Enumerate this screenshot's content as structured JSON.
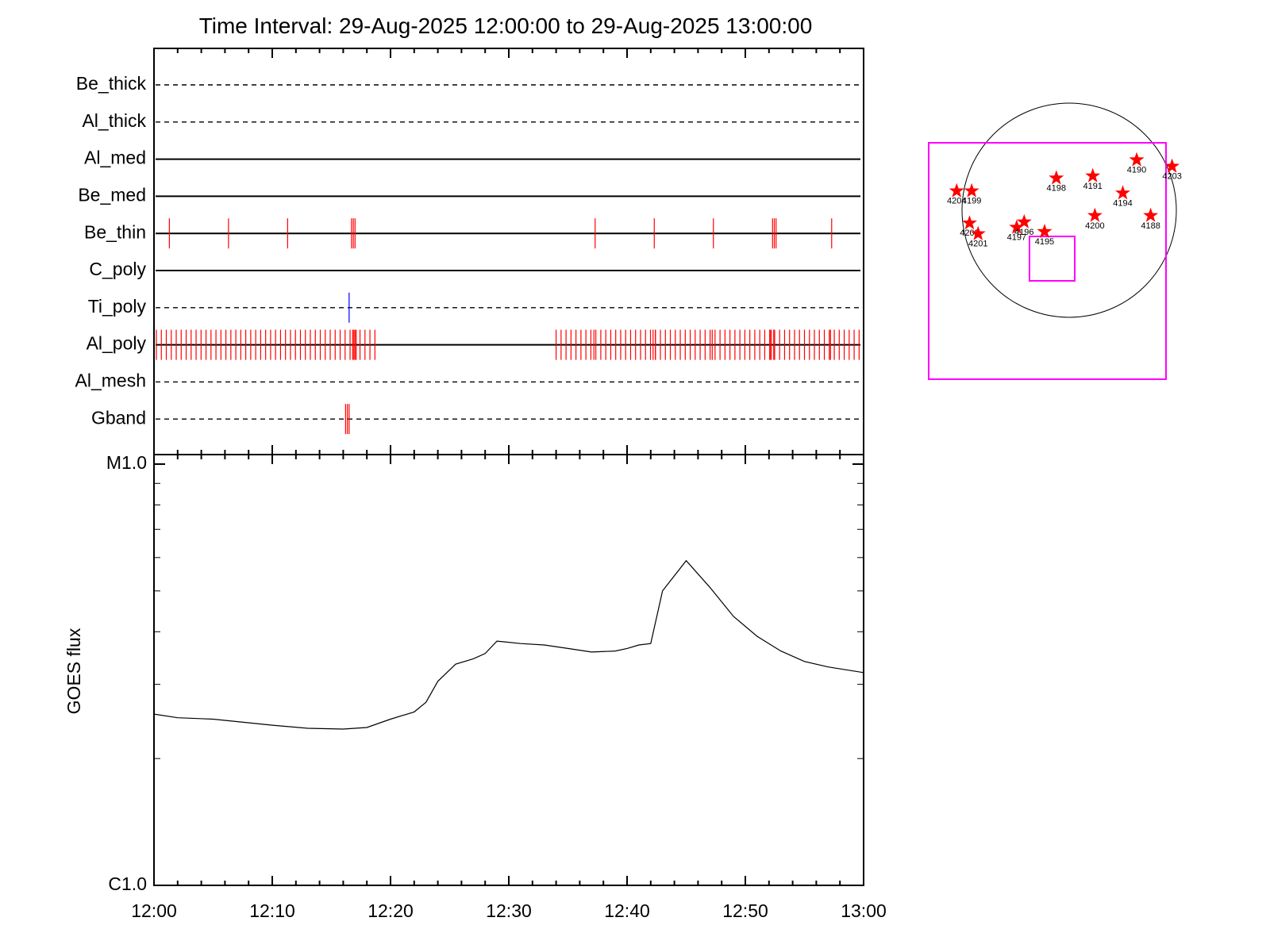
{
  "chart_data": {
    "type": "line",
    "title": "Time Interval: 29-Aug-2025 12:00:00 to 29-Aug-2025 13:00:00",
    "time_axis": {
      "range": [
        "12:00",
        "13:00"
      ],
      "tick_labels": [
        "12:00",
        "12:10",
        "12:20",
        "12:30",
        "12:40",
        "12:50",
        "13:00"
      ]
    },
    "filter_panel": {
      "rows": [
        {
          "name": "Be_thick",
          "style": "dashed",
          "marks": []
        },
        {
          "name": "Al_thick",
          "style": "dashed",
          "marks": []
        },
        {
          "name": "Al_med",
          "style": "solid",
          "marks": []
        },
        {
          "name": "Be_med",
          "style": "solid",
          "marks": []
        },
        {
          "name": "Be_thin",
          "style": "solid",
          "mark_color": "#ff0000",
          "marks": [
            1.3,
            6.3,
            11.3,
            16.7,
            16.85,
            17.0,
            37.3,
            42.3,
            47.3,
            52.3,
            52.45,
            52.6,
            57.3
          ]
        },
        {
          "name": "C_poly",
          "style": "solid",
          "marks": []
        },
        {
          "name": "Ti_poly",
          "style": "dashed",
          "mark_color": "#0000ff",
          "marks": [
            16.5
          ]
        },
        {
          "name": "Al_poly",
          "style": "solid",
          "mark_color": "#ff0000",
          "mark_ranges": [
            [
              0.2,
              18.8,
              0.42
            ],
            [
              34.0,
              59.8,
              0.42
            ]
          ],
          "marks": [
            16.8,
            16.9,
            17.1,
            37.2,
            42.2,
            42.4,
            47.2,
            52.1,
            52.2,
            52.4,
            57.2
          ]
        },
        {
          "name": "Al_mesh",
          "style": "dashed",
          "marks": []
        },
        {
          "name": "Gband",
          "style": "dashed",
          "mark_color": "#ff0000",
          "marks": [
            16.2,
            16.35,
            16.5
          ]
        }
      ]
    },
    "goes_panel": {
      "ylabel": "GOES flux",
      "y_tick_labels": [
        "C1.0",
        "M1.0"
      ],
      "y_scale": "log",
      "ylim": [
        1e-06,
        1e-05
      ],
      "series": [
        {
          "x_minutes": [
            0,
            2,
            5,
            10,
            13,
            16,
            18,
            20,
            22,
            23,
            24,
            25.5,
            27,
            28,
            29,
            31,
            33,
            35,
            37,
            39,
            40,
            41,
            42,
            43,
            45,
            47,
            49,
            51,
            53,
            55,
            57,
            60
          ],
          "y": [
            2.55e-06,
            2.5e-06,
            2.48e-06,
            2.4e-06,
            2.36e-06,
            2.35e-06,
            2.37e-06,
            2.48e-06,
            2.58e-06,
            2.72e-06,
            3.05e-06,
            3.35e-06,
            3.45e-06,
            3.55e-06,
            3.8e-06,
            3.75e-06,
            3.72e-06,
            3.65e-06,
            3.58e-06,
            3.6e-06,
            3.65e-06,
            3.72e-06,
            3.75e-06,
            5e-06,
            5.9e-06,
            5.1e-06,
            4.35e-06,
            3.9e-06,
            3.6e-06,
            3.4e-06,
            3.3e-06,
            3.2e-06
          ]
        }
      ]
    },
    "sun_map": {
      "frame_color": "#ff00ff",
      "marker_color": "#ff0000",
      "regions": [
        {
          "label": "4204",
          "x": -1.05,
          "y": 0.18
        },
        {
          "label": "4199",
          "x": -0.91,
          "y": 0.18
        },
        {
          "label": "4198",
          "x": -0.12,
          "y": 0.3
        },
        {
          "label": "4191",
          "x": 0.22,
          "y": 0.32
        },
        {
          "label": "4190",
          "x": 0.63,
          "y": 0.47
        },
        {
          "label": "4203",
          "x": 0.96,
          "y": 0.41
        },
        {
          "label": "4194",
          "x": 0.5,
          "y": 0.16
        },
        {
          "label": "4200",
          "x": 0.24,
          "y": -0.05
        },
        {
          "label": "4188",
          "x": 0.76,
          "y": -0.05
        },
        {
          "label": "4202",
          "x": -0.93,
          "y": -0.12
        },
        {
          "label": "4201",
          "x": -0.85,
          "y": -0.22
        },
        {
          "label": "4197",
          "x": -0.49,
          "y": -0.16
        },
        {
          "label": "4196",
          "x": -0.42,
          "y": -0.11
        },
        {
          "label": "4195",
          "x": -0.23,
          "y": -0.2
        }
      ]
    }
  }
}
